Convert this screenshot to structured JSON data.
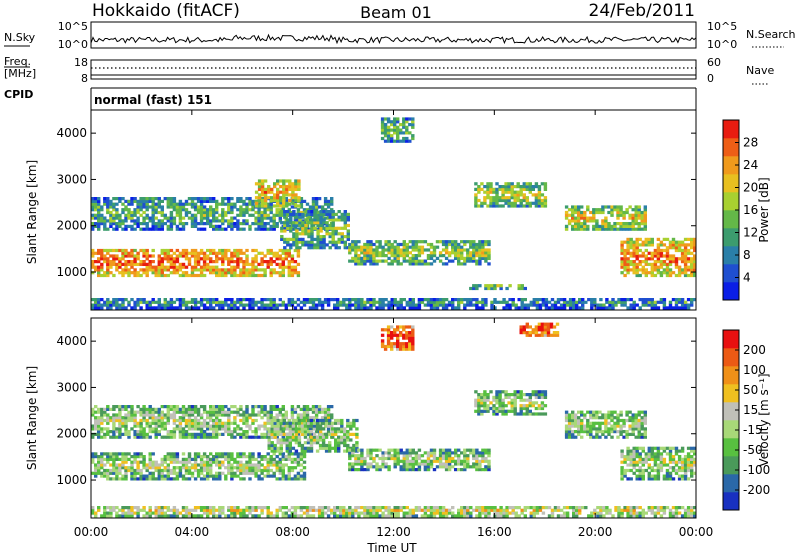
{
  "header": {
    "station": "Hokkaido (fitACF)",
    "beam": "Beam 01",
    "date": "24/Feb/2011"
  },
  "sky_panel": {
    "left_label": "N.Sky",
    "left_ticks": [
      "10^5",
      "10^0"
    ],
    "right_label": "N.Search",
    "right_ticks": [
      "10^5",
      "10^0"
    ]
  },
  "freq_panel": {
    "left_label_1": "Freq.",
    "left_label_2": "[MHz]",
    "left_ticks": [
      "18",
      "8"
    ],
    "right_label": "Nave",
    "right_ticks": [
      "60",
      "0"
    ]
  },
  "cpid": {
    "label": "CPID",
    "text": "normal (fast) 151"
  },
  "x_axis": {
    "label": "Time UT",
    "ticks": [
      "00:00",
      "04:00",
      "08:00",
      "12:00",
      "16:00",
      "20:00",
      "00:00"
    ]
  },
  "chart_data": [
    {
      "type": "heatmap",
      "title": "Power",
      "ylabel": "Slant Range [km]",
      "xlabel": "Time UT",
      "xlim": [
        0,
        24
      ],
      "ylim": [
        180,
        4500
      ],
      "yticks": [
        "1000",
        "2000",
        "3000",
        "4000"
      ],
      "colorbar": {
        "label": "Power [dB]",
        "ticks": [
          "4",
          "8",
          "12",
          "16",
          "20",
          "24",
          "28"
        ],
        "colors": [
          "#0a1ee6",
          "#1f4fd0",
          "#2a7fa8",
          "#3c9c6e",
          "#64b848",
          "#a8d030",
          "#e8c020",
          "#f09a1c",
          "#ee5e16",
          "#e81c10"
        ]
      },
      "regions": [
        {
          "t": [
            0.0,
            8.2
          ],
          "r": [
            900,
            1500
          ],
          "level": 0.85
        },
        {
          "t": [
            0.0,
            9.5
          ],
          "r": [
            1900,
            2600
          ],
          "level": 0.45
        },
        {
          "t": [
            6.5,
            8.2
          ],
          "r": [
            2400,
            3000
          ],
          "level": 0.75
        },
        {
          "t": [
            7.5,
            10.2
          ],
          "r": [
            1500,
            2300
          ],
          "level": 0.5
        },
        {
          "t": [
            10.2,
            15.8
          ],
          "r": [
            1150,
            1650
          ],
          "level": 0.55
        },
        {
          "t": [
            11.5,
            12.8
          ],
          "r": [
            3800,
            4300
          ],
          "level": 0.5
        },
        {
          "t": [
            15.2,
            18.0
          ],
          "r": [
            2400,
            2900
          ],
          "level": 0.6
        },
        {
          "t": [
            18.8,
            22.0
          ],
          "r": [
            1900,
            2400
          ],
          "level": 0.65
        },
        {
          "t": [
            21.0,
            24.0
          ],
          "r": [
            900,
            1700
          ],
          "level": 0.8
        },
        {
          "t": [
            15.0,
            17.2
          ],
          "r": [
            620,
            700
          ],
          "level": 0.6
        },
        {
          "t": [
            0.0,
            24.0
          ],
          "r": [
            200,
            420
          ],
          "level": 0.35
        }
      ]
    },
    {
      "type": "heatmap",
      "title": "Velocity",
      "ylabel": "Slant Range [km]",
      "xlabel": "Time UT",
      "xlim": [
        0,
        24
      ],
      "ylim": [
        180,
        4500
      ],
      "yticks": [
        "1000",
        "2000",
        "3000",
        "4000"
      ],
      "colorbar": {
        "label": "Velocity [m s⁻¹]",
        "ticks": [
          "200",
          "100",
          "50",
          "15",
          "-15",
          "-50",
          "-100",
          "-200"
        ],
        "colors": [
          "#1830c0",
          "#2a68a8",
          "#4a9a5a",
          "#58c040",
          "#a8d878",
          "#c0c0b8",
          "#f0c020",
          "#f09018",
          "#ec5a14",
          "#e81010"
        ]
      },
      "regions": [
        {
          "t": [
            0.0,
            8.5
          ],
          "r": [
            1000,
            1550
          ],
          "level": 0.5
        },
        {
          "t": [
            0.0,
            9.5
          ],
          "r": [
            1900,
            2600
          ],
          "level": 0.5
        },
        {
          "t": [
            7.0,
            10.5
          ],
          "r": [
            1600,
            2300
          ],
          "level": 0.5
        },
        {
          "t": [
            10.2,
            15.8
          ],
          "r": [
            1200,
            1650
          ],
          "level": 0.5
        },
        {
          "t": [
            15.2,
            18.0
          ],
          "r": [
            2400,
            2900
          ],
          "level": 0.5
        },
        {
          "t": [
            18.8,
            22.0
          ],
          "r": [
            1900,
            2500
          ],
          "level": 0.5
        },
        {
          "t": [
            21.0,
            24.0
          ],
          "r": [
            1000,
            1700
          ],
          "level": 0.5
        },
        {
          "t": [
            11.5,
            12.8
          ],
          "r": [
            3800,
            4300
          ],
          "level": 0.95
        },
        {
          "t": [
            17.0,
            18.5
          ],
          "r": [
            4100,
            4400
          ],
          "level": 0.95
        },
        {
          "t": [
            0.0,
            24.0
          ],
          "r": [
            200,
            420
          ],
          "level": 0.6
        }
      ]
    }
  ],
  "colors": {
    "frame": "#000000",
    "background": "#ffffff"
  }
}
